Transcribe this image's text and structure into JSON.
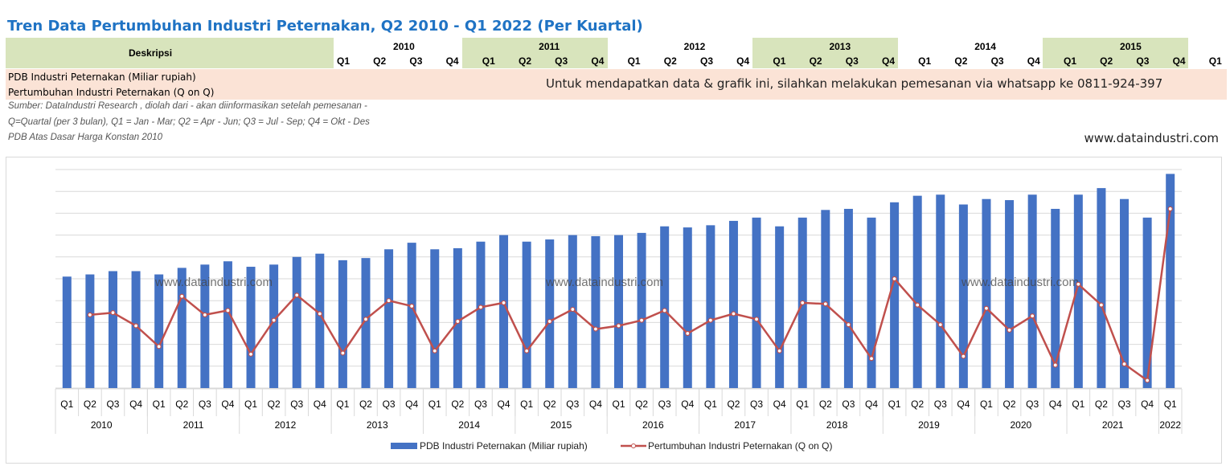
{
  "header": {
    "title": "Tren Data Pertumbuhan Industri Peternakan, Q2 2010 - Q1 2022 (Per Kuartal)",
    "desc_label": "Deskripsi",
    "years": [
      "2010",
      "2011",
      "2012",
      "2013",
      "2014",
      "2015"
    ],
    "quarters": [
      "Q1",
      "Q2",
      "Q3",
      "Q4"
    ],
    "last_quarter": "Q1"
  },
  "table": {
    "row1_label": "PDB Industri Peternakan (Miliar rupiah)",
    "row2_label": "Pertumbuhan Industri Peternakan (Q on Q)",
    "order_message": "Untuk mendapatkan data & grafik ini, silahkan melakukan pemesanan via whatsapp ke 0811-924-397"
  },
  "notes": {
    "source": "Sumber: DataIndustri Research , diolah dari - akan diinformasikan setelah pemesanan -",
    "quarter_def": "Q=Quartal (per 3 bulan), Q1 = Jan - Mar; Q2 = Apr - Jun; Q3 = Jul - Sep; Q4 = Okt - Des",
    "basis": "PDB Atas Dasar Harga Konstan 2010"
  },
  "website": "www.dataindustri.com",
  "colors": {
    "bar": "#4472c4",
    "line": "#c0504d",
    "header_green": "#d8e4bc",
    "row_pink": "#fbe3d6",
    "title": "#1f73c4"
  },
  "chart_data": {
    "type": "bar+line",
    "watermark": "www.dataindustri.com",
    "x_quarters": [
      "Q1",
      "Q2",
      "Q3",
      "Q4",
      "Q1",
      "Q2",
      "Q3",
      "Q4",
      "Q1",
      "Q2",
      "Q3",
      "Q4",
      "Q1",
      "Q2",
      "Q3",
      "Q4",
      "Q1",
      "Q2",
      "Q3",
      "Q4",
      "Q1",
      "Q2",
      "Q3",
      "Q4",
      "Q1",
      "Q2",
      "Q3",
      "Q4",
      "Q1",
      "Q2",
      "Q3",
      "Q4",
      "Q1",
      "Q2",
      "Q3",
      "Q4",
      "Q1",
      "Q2",
      "Q3",
      "Q4",
      "Q1",
      "Q2",
      "Q3",
      "Q4",
      "Q1",
      "Q2",
      "Q3",
      "Q4",
      "Q1"
    ],
    "year_groups": [
      {
        "year": "2010",
        "count": 4
      },
      {
        "year": "2011",
        "count": 4
      },
      {
        "year": "2012",
        "count": 4
      },
      {
        "year": "2013",
        "count": 4
      },
      {
        "year": "2014",
        "count": 4
      },
      {
        "year": "2015",
        "count": 4
      },
      {
        "year": "2016",
        "count": 4
      },
      {
        "year": "2017",
        "count": 4
      },
      {
        "year": "2018",
        "count": 4
      },
      {
        "year": "2019",
        "count": 4
      },
      {
        "year": "2020",
        "count": 4
      },
      {
        "year": "2021",
        "count": 4
      },
      {
        "year": "2022",
        "count": 1
      }
    ],
    "y_range": [
      0,
      100
    ],
    "series": [
      {
        "name": "PDB Industri Peternakan (Miliar rupiah)",
        "kind": "bar",
        "values": [
          51.0,
          52.0,
          53.5,
          53.5,
          52.0,
          55.0,
          56.5,
          58.0,
          55.5,
          56.5,
          60.0,
          61.5,
          58.5,
          59.5,
          63.5,
          66.5,
          63.5,
          64.0,
          67.0,
          70.0,
          67.0,
          68.0,
          70.0,
          69.5,
          70.0,
          71.0,
          74.0,
          73.5,
          74.5,
          76.5,
          78.0,
          74.0,
          78.0,
          81.5,
          82.0,
          78.0,
          85.0,
          88.0,
          88.5,
          84.0,
          86.5,
          86.0,
          88.5,
          82.0,
          88.5,
          91.5,
          86.5,
          78.0,
          98.0
        ]
      },
      {
        "name": "Pertumbuhan Industri Peternakan (Q on Q)",
        "kind": "line",
        "values": [
          null,
          33.5,
          34.5,
          28.5,
          19.0,
          42.0,
          33.5,
          35.5,
          15.5,
          31.0,
          42.5,
          34.0,
          16.0,
          31.5,
          40.0,
          37.5,
          17.0,
          30.5,
          37.0,
          39.0,
          17.0,
          30.5,
          36.0,
          27.0,
          28.5,
          31.0,
          35.5,
          25.0,
          31.0,
          34.0,
          31.5,
          17.0,
          39.0,
          38.5,
          29.0,
          13.5,
          50.0,
          38.0,
          29.0,
          14.5,
          36.5,
          26.5,
          33.0,
          10.5,
          47.5,
          38.0,
          11.0,
          3.5,
          82.0
        ]
      }
    ],
    "legend": [
      "PDB Industri Peternakan (Miliar rupiah)",
      "Pertumbuhan Industri Peternakan (Q on Q)"
    ],
    "legend_position": "bottom"
  }
}
